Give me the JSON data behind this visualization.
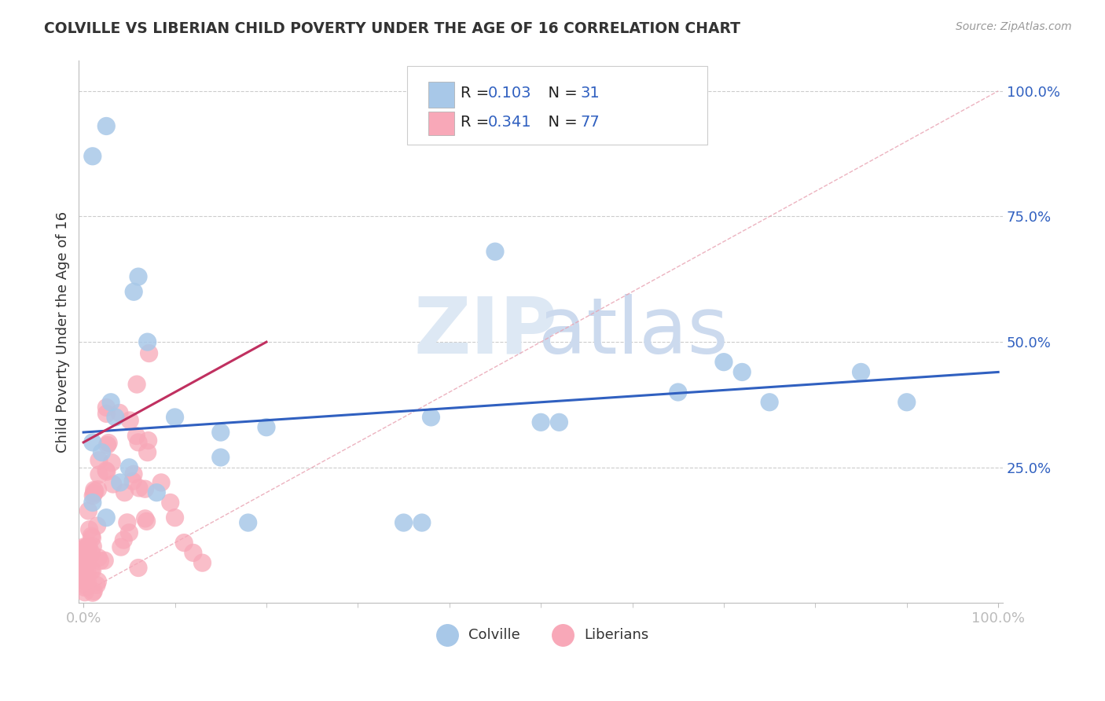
{
  "title": "COLVILLE VS LIBERIAN CHILD POVERTY UNDER THE AGE OF 16 CORRELATION CHART",
  "source": "Source: ZipAtlas.com",
  "ylabel": "Child Poverty Under the Age of 16",
  "colville_R": 0.103,
  "colville_N": 31,
  "liberian_R": 0.341,
  "liberian_N": 77,
  "colville_color": "#a8c8e8",
  "liberian_color": "#f8a8b8",
  "colville_line_color": "#3060c0",
  "liberian_line_color": "#c03060",
  "diag_line_color": "#e8a0b0",
  "text_color": "#333333",
  "legend_value_color": "#3060c0",
  "right_axis_color": "#3060c0",
  "grid_color": "#cccccc",
  "colville_scatter_x": [
    0.01,
    0.025,
    0.055,
    0.06,
    0.03,
    0.07,
    0.1,
    0.15,
    0.2,
    0.035,
    0.15,
    0.18,
    0.38,
    0.45,
    0.5,
    0.52,
    0.65,
    0.7,
    0.72,
    0.75,
    0.85,
    0.9,
    0.35,
    0.37,
    0.01,
    0.02,
    0.05,
    0.04,
    0.08,
    0.01,
    0.025
  ],
  "colville_scatter_y": [
    0.87,
    0.93,
    0.6,
    0.63,
    0.38,
    0.5,
    0.35,
    0.32,
    0.33,
    0.35,
    0.27,
    0.14,
    0.35,
    0.68,
    0.34,
    0.34,
    0.4,
    0.46,
    0.44,
    0.38,
    0.44,
    0.38,
    0.14,
    0.14,
    0.3,
    0.28,
    0.25,
    0.22,
    0.2,
    0.18,
    0.15
  ],
  "colville_line_x": [
    0.0,
    1.0
  ],
  "colville_line_y": [
    0.32,
    0.44
  ],
  "liberian_line_x": [
    0.0,
    0.2
  ],
  "liberian_line_y": [
    0.3,
    0.5
  ],
  "xlim": [
    0.0,
    1.0
  ],
  "ylim": [
    0.0,
    1.0
  ],
  "yticks": [
    0.25,
    0.5,
    0.75,
    1.0
  ],
  "ytick_labels": [
    "25.0%",
    "50.0%",
    "75.0%",
    "100.0%"
  ]
}
